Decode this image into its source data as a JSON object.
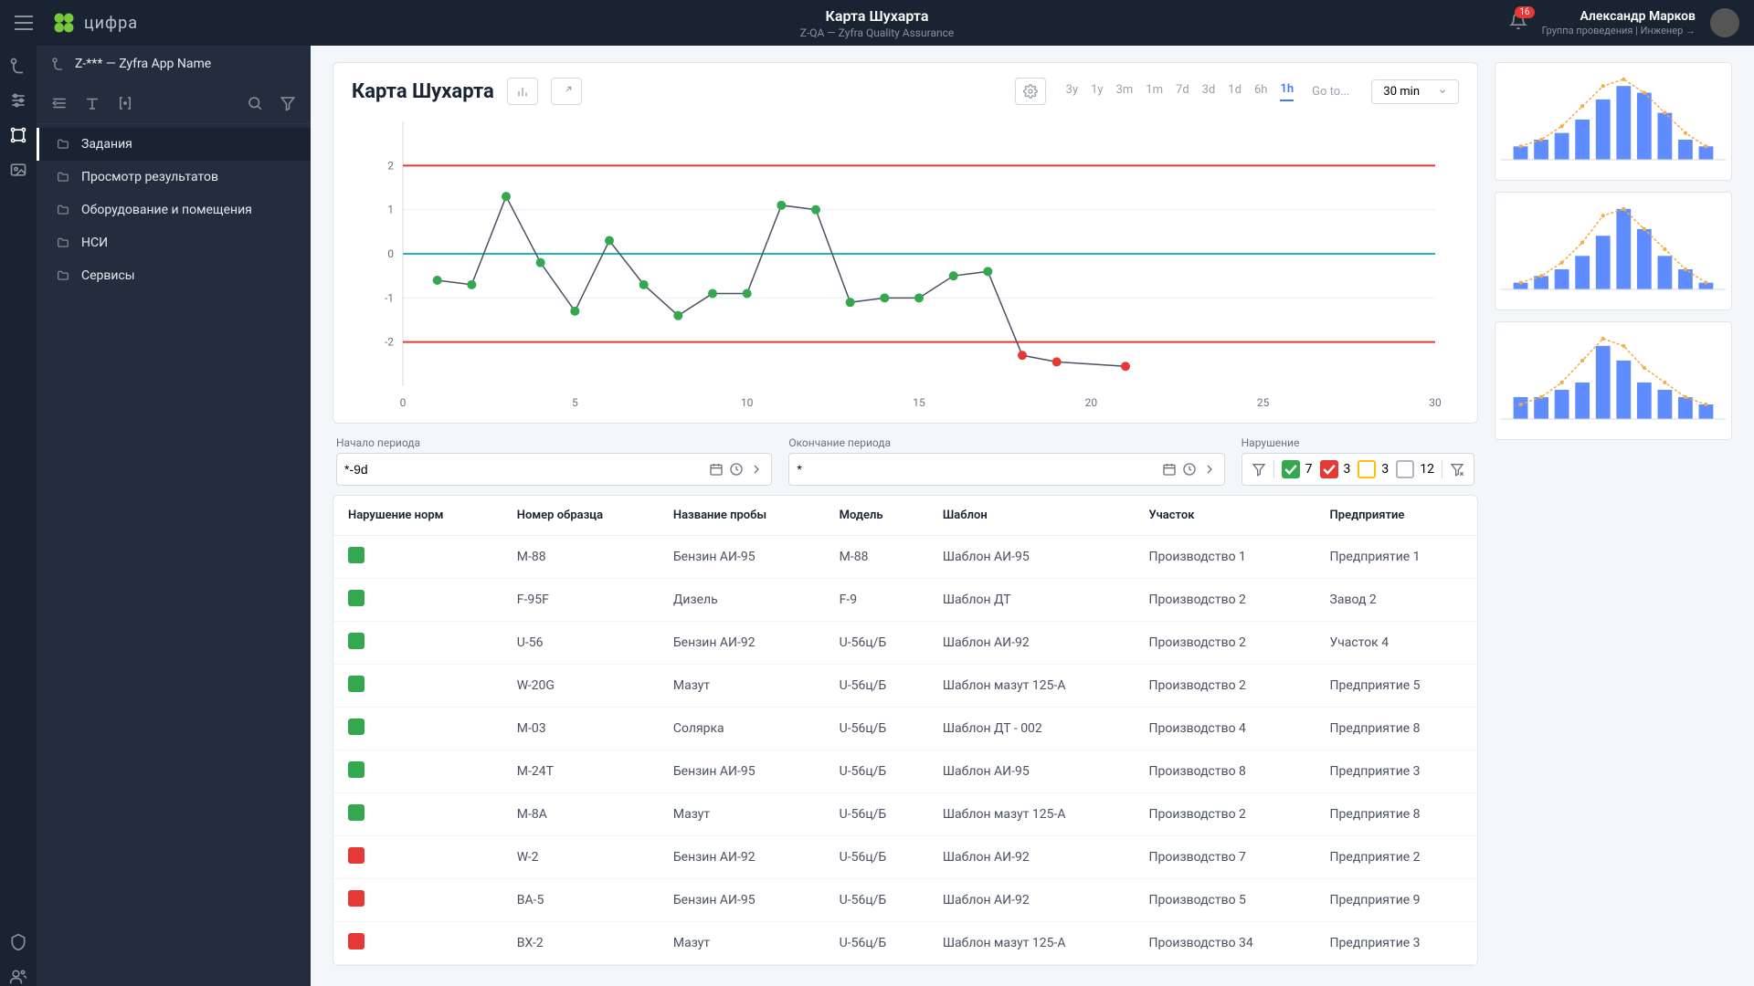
{
  "header": {
    "logo_text": "цифра",
    "title": "Карта Шухарта",
    "subtitle": "Z-QA — Zyfra Quality Assurance",
    "badge": "16",
    "user_name": "Александр Марков",
    "user_role": "Группа проведения | Инженер →"
  },
  "sidebar": {
    "app_name": "Z-*** — Zyfra App Name",
    "items": [
      {
        "label": "Задания"
      },
      {
        "label": "Просмотр результатов"
      },
      {
        "label": "Оборудование и помещения"
      },
      {
        "label": "НСИ"
      },
      {
        "label": "Сервисы"
      }
    ]
  },
  "chart": {
    "title": "Карта Шухарта",
    "range_tabs": [
      "3y",
      "1y",
      "3m",
      "1m",
      "7d",
      "3d",
      "1d",
      "6h",
      "1h"
    ],
    "active_range": "1h",
    "goto": "Go to...",
    "select_value": "30 min",
    "type": "line",
    "xlim": [
      0,
      30
    ],
    "ylim": [
      -3,
      3
    ],
    "xticks": [
      0,
      5,
      10,
      15,
      20,
      25,
      30
    ],
    "yticks": [
      -2,
      -1,
      0,
      1,
      2
    ],
    "grid_color": "#eceef2",
    "axis_color": "#d5d9e0",
    "centerline_color": "#1fb6c1",
    "limit_color": "#e53935",
    "ucl": 2,
    "lcl": -2,
    "line_color": "#4a5160",
    "points": [
      {
        "x": 1,
        "y": -0.6,
        "c": "#33a84f"
      },
      {
        "x": 2,
        "y": -0.7,
        "c": "#33a84f"
      },
      {
        "x": 3,
        "y": 1.3,
        "c": "#33a84f"
      },
      {
        "x": 4,
        "y": -0.2,
        "c": "#33a84f"
      },
      {
        "x": 5,
        "y": -1.3,
        "c": "#33a84f"
      },
      {
        "x": 6,
        "y": 0.3,
        "c": "#33a84f"
      },
      {
        "x": 7,
        "y": -0.7,
        "c": "#33a84f"
      },
      {
        "x": 8,
        "y": -1.4,
        "c": "#33a84f"
      },
      {
        "x": 9,
        "y": -0.9,
        "c": "#33a84f"
      },
      {
        "x": 10,
        "y": -0.9,
        "c": "#33a84f"
      },
      {
        "x": 11,
        "y": 1.1,
        "c": "#33a84f"
      },
      {
        "x": 12,
        "y": 1.0,
        "c": "#33a84f"
      },
      {
        "x": 13,
        "y": -1.1,
        "c": "#33a84f"
      },
      {
        "x": 14,
        "y": -1.0,
        "c": "#33a84f"
      },
      {
        "x": 15,
        "y": -1.0,
        "c": "#33a84f"
      },
      {
        "x": 16,
        "y": -0.5,
        "c": "#33a84f"
      },
      {
        "x": 17,
        "y": -0.4,
        "c": "#33a84f"
      },
      {
        "x": 18,
        "y": -2.3,
        "c": "#e53935"
      },
      {
        "x": 19,
        "y": -2.45,
        "c": "#e53935"
      },
      {
        "x": 21,
        "y": -2.55,
        "c": "#e53935"
      }
    ],
    "label_fontsize": 12,
    "point_radius": 5,
    "line_width": 1.5
  },
  "filters": {
    "period_start_label": "Начало периода",
    "period_start_value": "*-9d",
    "period_end_label": "Окончание периода",
    "period_end_value": "*",
    "violation_label": "Нарушение",
    "counts": {
      "green": "7",
      "red": "3",
      "yellow": "3",
      "grey": "12"
    },
    "colors": {
      "green": "#33a84f",
      "red": "#e53935",
      "yellow": "#ffc107",
      "grey": "#ffffff",
      "grey_border": "#b0b6c0"
    }
  },
  "table": {
    "columns": [
      "Нарушение норм",
      "Номер образца",
      "Название пробы",
      "Модель",
      "Шаблон",
      "Участок",
      "Предприятие"
    ],
    "rows": [
      {
        "c": "#33a84f",
        "sample": "M-88",
        "probe": "Бензин АИ-95",
        "model": "М-88",
        "tpl": "Шаблон АИ-95",
        "area": "Производство 1",
        "ent": "Предприятие 1"
      },
      {
        "c": "#33a84f",
        "sample": "F-95F",
        "probe": "Дизель",
        "model": "F-9",
        "tpl": "Шаблон ДТ",
        "area": "Производство 2",
        "ent": "Завод 2"
      },
      {
        "c": "#33a84f",
        "sample": "U-56",
        "probe": "Бензин АИ-92",
        "model": "U-56ц/Б",
        "tpl": "Шаблон АИ-92",
        "area": "Производство 2",
        "ent": "Участок 4"
      },
      {
        "c": "#33a84f",
        "sample": "W-20G",
        "probe": "Мазут",
        "model": "U-56ц/Б",
        "tpl": "Шаблон мазут 125-А",
        "area": "Производство 2",
        "ent": "Предприятие 5"
      },
      {
        "c": "#33a84f",
        "sample": "M-03",
        "probe": "Солярка",
        "model": "U-56ц/Б",
        "tpl": "Шаблон ДТ - 002",
        "area": "Производство 4",
        "ent": "Предприятие 8"
      },
      {
        "c": "#33a84f",
        "sample": "M-24T",
        "probe": "Бензин АИ-95",
        "model": "U-56ц/Б",
        "tpl": "Шаблон АИ-95",
        "area": "Производство 8",
        "ent": "Предприятие 3"
      },
      {
        "c": "#33a84f",
        "sample": "M-8A",
        "probe": "Мазут",
        "model": "U-56ц/Б",
        "tpl": "Шаблон мазут 125-А",
        "area": "Производство 2",
        "ent": "Предприятие 8"
      },
      {
        "c": "#e53935",
        "sample": "W-2",
        "probe": "Бензин АИ-92",
        "model": "U-56ц/Б",
        "tpl": "Шаблон АИ-92",
        "area": "Производство 7",
        "ent": "Предприятие 2"
      },
      {
        "c": "#e53935",
        "sample": "BA-5",
        "probe": "Бензин АИ-95",
        "model": "U-56ц/Б",
        "tpl": "Шаблон АИ-92",
        "area": "Производство 5",
        "ent": "Предприятие 9"
      },
      {
        "c": "#e53935",
        "sample": "BX-2",
        "probe": "Мазут",
        "model": "U-56ц/Б",
        "tpl": "Шаблон мазут 125-А",
        "area": "Производство 34",
        "ent": "Предприятие 3"
      }
    ]
  },
  "thumbs": {
    "bar_color": "#5f8cff",
    "line_color": "#f0ad4e",
    "sets": [
      {
        "values": [
          2,
          3,
          4,
          6,
          9,
          11,
          10,
          7,
          3,
          2
        ],
        "curve": [
          2,
          3,
          5,
          8,
          11,
          12,
          10,
          7,
          4,
          2
        ]
      },
      {
        "values": [
          1,
          2,
          3,
          5,
          8,
          12,
          9,
          5,
          3,
          1
        ],
        "curve": [
          1,
          2,
          4,
          7,
          11,
          12,
          9,
          6,
          3,
          1
        ]
      },
      {
        "values": [
          3,
          3,
          4,
          5,
          10,
          8,
          5,
          4,
          3,
          2
        ],
        "curve": [
          2,
          3,
          5,
          8,
          11,
          10,
          7,
          5,
          3,
          2
        ]
      }
    ]
  }
}
